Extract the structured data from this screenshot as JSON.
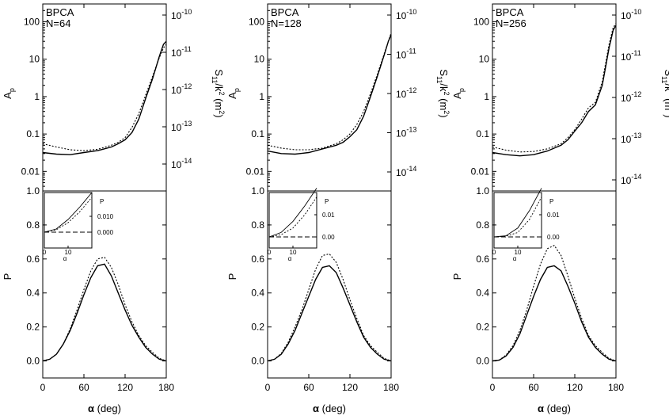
{
  "figure": {
    "xlabel": "α (deg)",
    "ylabel_top_left": "Ap",
    "ylabel_top_right": "S11/k² (m²)",
    "ylabel_bottom": "P",
    "inset_xlabel": "α",
    "inset_ylabel": "P"
  },
  "chart_data": [
    {
      "type": "line",
      "panel": "Ap",
      "annotation": [
        "BPCA",
        "N=64"
      ],
      "xlim": [
        0,
        180
      ],
      "ylim": [
        0.003,
        300
      ],
      "yscale": "log",
      "y_ticks": [
        "0.01",
        "0.1",
        "1",
        "10",
        "100"
      ],
      "right_axis_ticks": [
        "10^-10",
        "10^-11",
        "10^-12",
        "10^-13",
        "10^-14"
      ],
      "grid": false,
      "series": [
        {
          "style": "solid",
          "x": [
            0,
            20,
            40,
            60,
            80,
            100,
            110,
            120,
            130,
            140,
            150,
            160,
            170,
            176,
            180
          ],
          "y": [
            0.032,
            0.029,
            0.028,
            0.032,
            0.036,
            0.045,
            0.055,
            0.07,
            0.11,
            0.25,
            0.9,
            3,
            12,
            25,
            30
          ]
        },
        {
          "style": "dotted",
          "x": [
            0,
            20,
            40,
            60,
            80,
            100,
            110,
            120,
            130,
            140,
            150,
            160,
            170,
            176,
            180
          ],
          "y": [
            0.055,
            0.045,
            0.038,
            0.036,
            0.039,
            0.05,
            0.06,
            0.08,
            0.15,
            0.35,
            1.1,
            3.5,
            11,
            20,
            25
          ]
        }
      ]
    },
    {
      "type": "line",
      "panel": "P",
      "xlim": [
        0,
        180
      ],
      "ylim": [
        -0.1,
        1.0
      ],
      "y_ticks": [
        "0.0",
        "0.2",
        "0.4",
        "0.6",
        "0.8",
        "1.0"
      ],
      "x_ticks": [
        "0",
        "60",
        "120",
        "180"
      ],
      "grid": false,
      "series": [
        {
          "style": "solid",
          "x": [
            0,
            10,
            20,
            30,
            40,
            50,
            60,
            70,
            80,
            90,
            100,
            110,
            120,
            130,
            140,
            150,
            160,
            170,
            180
          ],
          "y": [
            0,
            0.01,
            0.04,
            0.1,
            0.18,
            0.28,
            0.39,
            0.49,
            0.56,
            0.57,
            0.5,
            0.4,
            0.3,
            0.21,
            0.14,
            0.08,
            0.04,
            0.01,
            0
          ]
        },
        {
          "style": "dotted",
          "x": [
            0,
            10,
            20,
            30,
            40,
            50,
            60,
            70,
            80,
            90,
            100,
            110,
            120,
            130,
            140,
            150,
            160,
            170,
            180
          ],
          "y": [
            0,
            0.01,
            0.04,
            0.1,
            0.19,
            0.3,
            0.42,
            0.53,
            0.6,
            0.61,
            0.55,
            0.45,
            0.33,
            0.23,
            0.15,
            0.09,
            0.05,
            0.015,
            0
          ]
        }
      ],
      "inset": {
        "xlim": [
          0,
          20
        ],
        "ylim": [
          -0.01,
          0.025
        ],
        "x_ticks": [
          "0",
          "10"
        ],
        "y_ticks": [
          "0.000",
          "0.010"
        ],
        "series": [
          {
            "style": "solid",
            "x": [
              0,
              5,
              10,
              15,
              20
            ],
            "y": [
              0,
              0.002,
              0.008,
              0.016,
              0.025
            ]
          },
          {
            "style": "dotted",
            "x": [
              0,
              5,
              10,
              15,
              20
            ],
            "y": [
              0,
              0.0015,
              0.006,
              0.013,
              0.022
            ]
          },
          {
            "style": "dashed",
            "x": [
              0,
              20
            ],
            "y": [
              0,
              0
            ]
          }
        ]
      }
    },
    {
      "type": "line",
      "panel": "Ap",
      "annotation": [
        "BPCA",
        "N=128"
      ],
      "xlim": [
        0,
        180
      ],
      "ylim": [
        0.003,
        300
      ],
      "yscale": "log",
      "y_ticks": [
        "0.01",
        "0.1",
        "1",
        "10",
        "100"
      ],
      "right_axis_ticks": [
        "10^-10",
        "10^-11",
        "10^-12",
        "10^-13",
        "10^-14"
      ],
      "grid": false,
      "series": [
        {
          "style": "solid",
          "x": [
            0,
            20,
            40,
            60,
            80,
            100,
            110,
            120,
            130,
            140,
            150,
            160,
            170,
            176,
            180
          ],
          "y": [
            0.035,
            0.03,
            0.029,
            0.032,
            0.04,
            0.05,
            0.06,
            0.085,
            0.13,
            0.3,
            1.0,
            3.5,
            13,
            30,
            45
          ]
        },
        {
          "style": "dotted",
          "x": [
            0,
            20,
            40,
            60,
            80,
            100,
            110,
            120,
            130,
            140,
            150,
            160,
            170,
            176,
            180
          ],
          "y": [
            0.05,
            0.042,
            0.038,
            0.038,
            0.042,
            0.055,
            0.07,
            0.1,
            0.18,
            0.4,
            1.2,
            4,
            14,
            30,
            50
          ]
        }
      ]
    },
    {
      "type": "line",
      "panel": "P",
      "xlim": [
        0,
        180
      ],
      "ylim": [
        -0.1,
        1.0
      ],
      "y_ticks": [
        "0.0",
        "0.2",
        "0.4",
        "0.6",
        "0.8",
        "1.0"
      ],
      "x_ticks": [
        "0",
        "60",
        "120",
        "180"
      ],
      "grid": false,
      "series": [
        {
          "style": "solid",
          "x": [
            0,
            10,
            20,
            30,
            40,
            50,
            60,
            70,
            80,
            90,
            100,
            110,
            120,
            130,
            140,
            150,
            160,
            170,
            180
          ],
          "y": [
            0,
            0.01,
            0.04,
            0.1,
            0.18,
            0.28,
            0.38,
            0.48,
            0.55,
            0.56,
            0.52,
            0.43,
            0.33,
            0.23,
            0.14,
            0.08,
            0.04,
            0.01,
            0
          ]
        },
        {
          "style": "dotted",
          "x": [
            0,
            10,
            20,
            30,
            40,
            50,
            60,
            70,
            80,
            90,
            100,
            110,
            120,
            130,
            140,
            150,
            160,
            170,
            180
          ],
          "y": [
            0,
            0.01,
            0.045,
            0.11,
            0.2,
            0.3,
            0.42,
            0.54,
            0.62,
            0.63,
            0.58,
            0.48,
            0.36,
            0.25,
            0.15,
            0.09,
            0.05,
            0.015,
            0
          ]
        }
      ],
      "inset": {
        "xlim": [
          0,
          20
        ],
        "ylim": [
          -0.005,
          0.02
        ],
        "x_ticks": [
          "0",
          "10"
        ],
        "y_ticks": [
          "0.00",
          "0.01"
        ],
        "series": [
          {
            "style": "solid",
            "x": [
              0,
              5,
              10,
              15,
              20
            ],
            "y": [
              0,
              0.002,
              0.007,
              0.014,
              0.022
            ]
          },
          {
            "style": "dotted",
            "x": [
              0,
              5,
              10,
              15,
              20
            ],
            "y": [
              0,
              0.001,
              0.004,
              0.01,
              0.018
            ]
          },
          {
            "style": "dashed",
            "x": [
              0,
              20
            ],
            "y": [
              0,
              0
            ]
          }
        ]
      }
    },
    {
      "type": "line",
      "panel": "Ap",
      "annotation": [
        "BPCA",
        "N=256"
      ],
      "xlim": [
        0,
        180
      ],
      "ylim": [
        0.003,
        300
      ],
      "yscale": "log",
      "y_ticks": [
        "0.01",
        "0.1",
        "1",
        "10",
        "100"
      ],
      "right_axis_ticks": [
        "10^-10",
        "10^-11",
        "10^-12",
        "10^-13",
        "10^-14"
      ],
      "grid": false,
      "series": [
        {
          "style": "solid",
          "x": [
            0,
            20,
            40,
            60,
            80,
            100,
            110,
            120,
            130,
            140,
            150,
            160,
            170,
            176,
            180
          ],
          "y": [
            0.032,
            0.028,
            0.026,
            0.028,
            0.035,
            0.05,
            0.07,
            0.12,
            0.2,
            0.4,
            0.6,
            2,
            20,
            60,
            80
          ]
        },
        {
          "style": "dotted",
          "x": [
            0,
            20,
            40,
            60,
            80,
            100,
            110,
            120,
            130,
            140,
            150,
            160,
            170,
            176,
            180
          ],
          "y": [
            0.045,
            0.037,
            0.033,
            0.034,
            0.04,
            0.055,
            0.08,
            0.13,
            0.25,
            0.5,
            0.7,
            2.5,
            25,
            70,
            90
          ]
        }
      ]
    },
    {
      "type": "line",
      "panel": "P",
      "xlim": [
        0,
        180
      ],
      "ylim": [
        -0.1,
        1.0
      ],
      "y_ticks": [
        "0.0",
        "0.2",
        "0.4",
        "0.6",
        "0.8",
        "1.0"
      ],
      "x_ticks": [
        "0",
        "60",
        "120",
        "180"
      ],
      "grid": false,
      "series": [
        {
          "style": "solid",
          "x": [
            0,
            10,
            20,
            30,
            40,
            50,
            60,
            70,
            80,
            90,
            100,
            110,
            120,
            130,
            140,
            150,
            160,
            170,
            180
          ],
          "y": [
            0,
            0.005,
            0.03,
            0.08,
            0.16,
            0.27,
            0.38,
            0.48,
            0.55,
            0.56,
            0.53,
            0.44,
            0.34,
            0.23,
            0.14,
            0.08,
            0.04,
            0.01,
            0
          ]
        },
        {
          "style": "dotted",
          "x": [
            0,
            10,
            20,
            30,
            40,
            50,
            60,
            70,
            80,
            90,
            100,
            110,
            120,
            130,
            140,
            150,
            160,
            170,
            180
          ],
          "y": [
            0,
            0.006,
            0.035,
            0.09,
            0.18,
            0.3,
            0.44,
            0.57,
            0.66,
            0.68,
            0.62,
            0.5,
            0.37,
            0.25,
            0.15,
            0.09,
            0.05,
            0.015,
            0
          ]
        }
      ],
      "inset": {
        "xlim": [
          0,
          20
        ],
        "ylim": [
          -0.005,
          0.02
        ],
        "x_ticks": [
          "0",
          "10"
        ],
        "y_ticks": [
          "0.00",
          "0.01"
        ],
        "series": [
          {
            "style": "solid",
            "x": [
              0,
              5,
              10,
              15,
              20
            ],
            "y": [
              0,
              0.0005,
              0.004,
              0.012,
              0.022
            ]
          },
          {
            "style": "dotted",
            "x": [
              0,
              5,
              10,
              15,
              20
            ],
            "y": [
              0,
              0.0003,
              0.002,
              0.008,
              0.018
            ]
          },
          {
            "style": "dashed",
            "x": [
              0,
              20
            ],
            "y": [
              0,
              0
            ]
          }
        ]
      }
    }
  ]
}
